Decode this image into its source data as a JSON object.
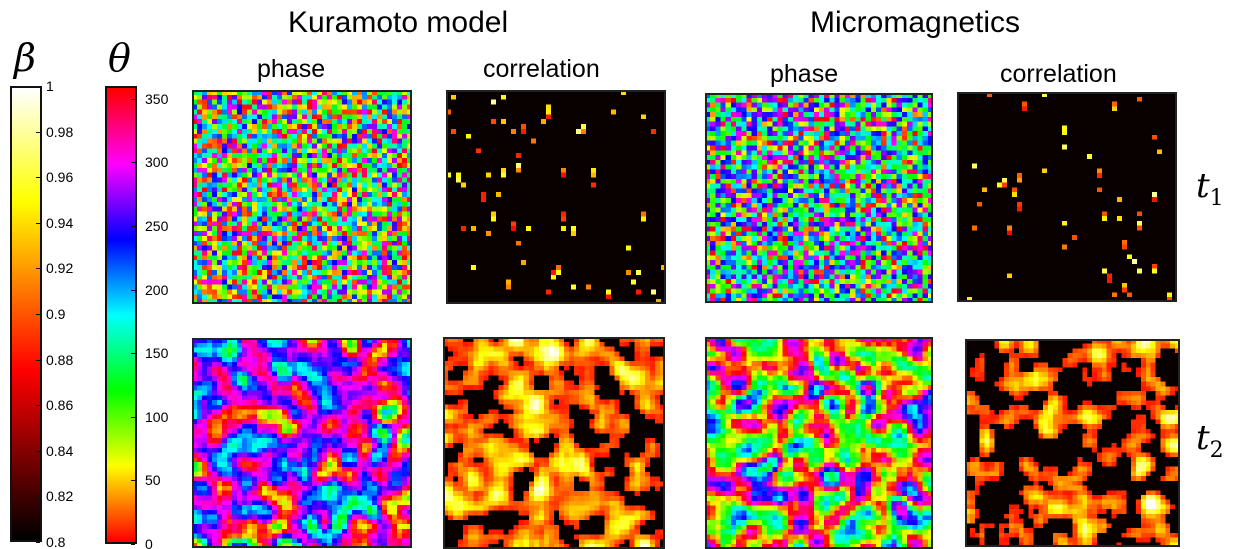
{
  "titles": {
    "kuramoto": "Kuramoto model",
    "micromagnetics": "Micromagnetics"
  },
  "subtitles": {
    "k_phase": "phase",
    "k_corr": "correlation",
    "m_phase": "phase",
    "m_corr": "correlation"
  },
  "colorbars": {
    "beta": {
      "symbol": "β",
      "ticks": [
        "1",
        "0.98",
        "0.96",
        "0.94",
        "0.92",
        "0.9",
        "0.88",
        "0.86",
        "0.84",
        "0.82",
        "0.8"
      ],
      "range": [
        0.8,
        1.0
      ],
      "colormap": "hot"
    },
    "theta": {
      "symbol": "θ",
      "ticks": [
        "350",
        "300",
        "250",
        "200",
        "150",
        "100",
        "50",
        "0"
      ],
      "range": [
        0,
        360
      ],
      "colormap": "hsv"
    }
  },
  "rows": {
    "t1": {
      "base": "t",
      "sub": "1"
    },
    "t2": {
      "base": "t",
      "sub": "2"
    }
  },
  "panels": [
    {
      "name": "kuramoto-phase-t1",
      "kind": "phase",
      "time": "t1"
    },
    {
      "name": "kuramoto-correlation-t1",
      "kind": "correlation",
      "time": "t1"
    },
    {
      "name": "micromagnetics-phase-t1",
      "kind": "phase",
      "time": "t1"
    },
    {
      "name": "micromagnetics-correlation-t1",
      "kind": "correlation",
      "time": "t1"
    },
    {
      "name": "kuramoto-phase-t2",
      "kind": "phase",
      "time": "t2"
    },
    {
      "name": "kuramoto-correlation-t2",
      "kind": "correlation",
      "time": "t2"
    },
    {
      "name": "micromagnetics-phase-t2",
      "kind": "phase",
      "time": "t2"
    },
    {
      "name": "micromagnetics-correlation-t2",
      "kind": "correlation",
      "time": "t2"
    }
  ]
}
